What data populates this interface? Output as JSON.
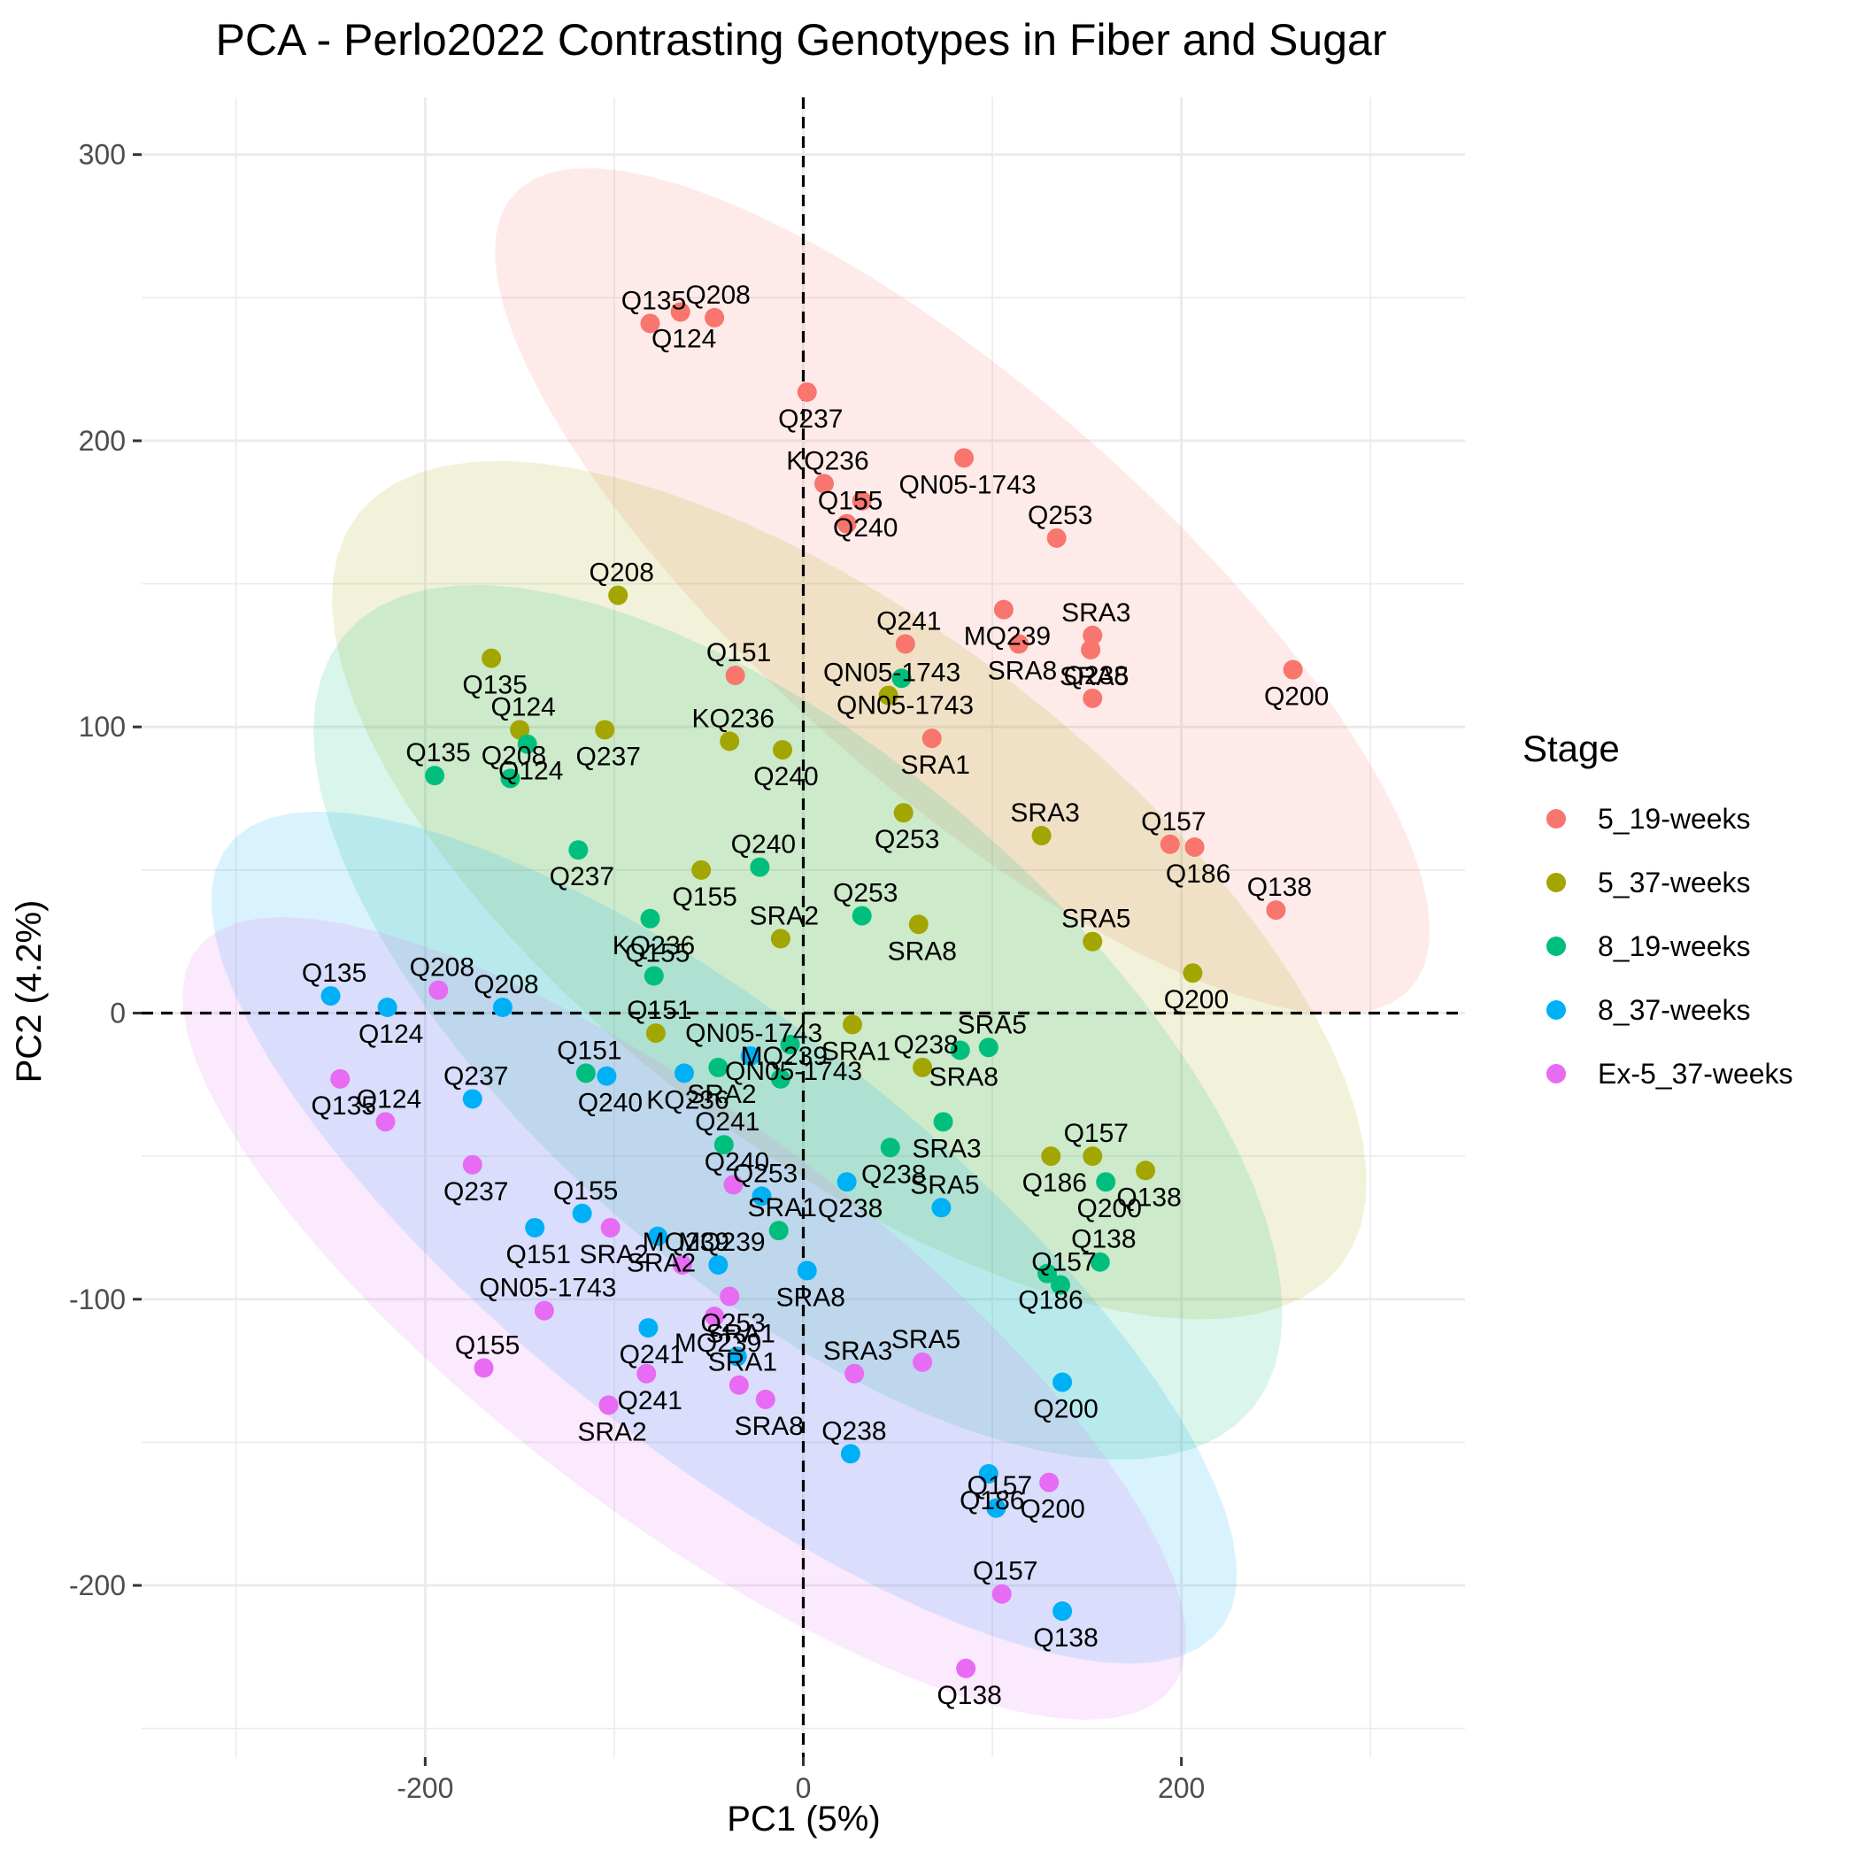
{
  "chart_data": {
    "type": "scatter",
    "title": "PCA - Perlo2022 Contrasting Genotypes in Fiber and Sugar",
    "xlabel": "PC1 (5%)",
    "ylabel": "PC2 (4.2%)",
    "xlim": [
      -350,
      350
    ],
    "ylim": [
      -260,
      320
    ],
    "x_ticks": [
      -200,
      0,
      200
    ],
    "y_ticks": [
      300,
      200,
      100,
      0,
      -100,
      -200
    ],
    "x_tick_labels": [
      "-200",
      "0",
      "200"
    ],
    "y_tick_labels": [
      "300",
      "200",
      "100",
      "0",
      "-100",
      "-200"
    ],
    "grid": true,
    "reference_lines": {
      "x": 0,
      "y": 0,
      "style": "dashed"
    },
    "ellipses": true,
    "legend_title": "Stage",
    "legend_position": "right",
    "series": [
      {
        "name": "5_19-weeks",
        "color": "#F8766D",
        "points": [
          {
            "x": -81,
            "y": 241,
            "label": "Q135"
          },
          {
            "x": -65,
            "y": 245,
            "label": "Q124"
          },
          {
            "x": -47,
            "y": 243,
            "label": "Q208"
          },
          {
            "x": 2,
            "y": 217,
            "label": "Q237"
          },
          {
            "x": 11,
            "y": 185,
            "label": "KQ236"
          },
          {
            "x": 31,
            "y": 179,
            "label": "Q240"
          },
          {
            "x": 23,
            "y": 171,
            "label": "Q155"
          },
          {
            "x": 85,
            "y": 194,
            "label": "QN05-1743"
          },
          {
            "x": 134,
            "y": 166,
            "label": "Q253"
          },
          {
            "x": 106,
            "y": 141,
            "label": "MQ239"
          },
          {
            "x": 54,
            "y": 129,
            "label": "Q241"
          },
          {
            "x": 114,
            "y": 129,
            "label": "SRA8"
          },
          {
            "x": 153,
            "y": 132,
            "label": "SRA3"
          },
          {
            "x": 152,
            "y": 127,
            "label": "SRA5"
          },
          {
            "x": 153,
            "y": 110,
            "label": "Q238"
          },
          {
            "x": 259,
            "y": 120,
            "label": "Q200"
          },
          {
            "x": -36,
            "y": 118,
            "label": "Q151"
          },
          {
            "x": 68,
            "y": 96,
            "label": "SRA1"
          },
          {
            "x": 194,
            "y": 59,
            "label": "Q157"
          },
          {
            "x": 207,
            "y": 58,
            "label": "Q186"
          },
          {
            "x": 250,
            "y": 36,
            "label": "Q138"
          }
        ]
      },
      {
        "name": "5_37-weeks",
        "color": "#A3A500",
        "points": [
          {
            "x": -98,
            "y": 146,
            "label": "Q208"
          },
          {
            "x": -165,
            "y": 124,
            "label": "Q135"
          },
          {
            "x": -150,
            "y": 99,
            "label": "Q124"
          },
          {
            "x": -105,
            "y": 99,
            "label": "Q237"
          },
          {
            "x": -39,
            "y": 95,
            "label": "KQ236"
          },
          {
            "x": -11,
            "y": 92,
            "label": "Q240"
          },
          {
            "x": 45,
            "y": 111,
            "label": "QN05-1743"
          },
          {
            "x": 53,
            "y": 70,
            "label": "Q253"
          },
          {
            "x": 126,
            "y": 62,
            "label": "SRA3"
          },
          {
            "x": -54,
            "y": 50,
            "label": "Q155"
          },
          {
            "x": -12,
            "y": 26,
            "label": "SRA2"
          },
          {
            "x": 61,
            "y": 31,
            "label": "SRA8"
          },
          {
            "x": 153,
            "y": 25,
            "label": "SRA5"
          },
          {
            "x": 206,
            "y": 14,
            "label": "Q200"
          },
          {
            "x": -78,
            "y": -7,
            "label": "Q151"
          },
          {
            "x": 26,
            "y": -4,
            "label": "SRA1"
          },
          {
            "x": 63,
            "y": -19,
            "label": "Q238"
          },
          {
            "x": 131,
            "y": -50,
            "label": "Q186"
          },
          {
            "x": 153,
            "y": -50,
            "label": "Q157"
          },
          {
            "x": 181,
            "y": -55,
            "label": "Q138"
          }
        ]
      },
      {
        "name": "8_19-weeks",
        "color": "#00BF7D",
        "points": [
          {
            "x": -195,
            "y": 83,
            "label": "Q135"
          },
          {
            "x": -146,
            "y": 94,
            "label": "Q124"
          },
          {
            "x": -155,
            "y": 82,
            "label": "Q208"
          },
          {
            "x": -119,
            "y": 57,
            "label": "Q237"
          },
          {
            "x": -23,
            "y": 51,
            "label": "Q240"
          },
          {
            "x": -81,
            "y": 33,
            "label": "KQ236"
          },
          {
            "x": -79,
            "y": 13,
            "label": "Q155"
          },
          {
            "x": 52,
            "y": 117,
            "label": "QN05-1743"
          },
          {
            "x": 31,
            "y": 34,
            "label": "Q253"
          },
          {
            "x": -7,
            "y": -11,
            "label": "QN05-1743"
          },
          {
            "x": -115,
            "y": -21,
            "label": "Q151"
          },
          {
            "x": -45,
            "y": -19,
            "label": "SRA2"
          },
          {
            "x": -12,
            "y": -23,
            "label": "MQ239"
          },
          {
            "x": 83,
            "y": -13,
            "label": "SRA8"
          },
          {
            "x": 98,
            "y": -12,
            "label": "SRA5"
          },
          {
            "x": 74,
            "y": -38,
            "label": "SRA3"
          },
          {
            "x": -42,
            "y": -46,
            "label": "Q241"
          },
          {
            "x": 46,
            "y": -47,
            "label": "Q238"
          },
          {
            "x": -13,
            "y": -76,
            "label": "SRA1"
          },
          {
            "x": 160,
            "y": -59,
            "label": "Q200"
          },
          {
            "x": 157,
            "y": -87,
            "label": "Q138"
          },
          {
            "x": 129,
            "y": -91,
            "label": "Q186"
          },
          {
            "x": 136,
            "y": -95,
            "label": "Q157"
          }
        ]
      },
      {
        "name": "8_37-weeks",
        "color": "#00B0F6",
        "points": [
          {
            "x": -250,
            "y": 6,
            "label": "Q135"
          },
          {
            "x": -220,
            "y": 2,
            "label": "Q124"
          },
          {
            "x": -159,
            "y": 2,
            "label": "Q208"
          },
          {
            "x": -104,
            "y": -22,
            "label": "Q240"
          },
          {
            "x": -175,
            "y": -30,
            "label": "Q237"
          },
          {
            "x": -63,
            "y": -21,
            "label": "KQ236"
          },
          {
            "x": -28,
            "y": -15,
            "label": "QN05-1743"
          },
          {
            "x": 23,
            "y": -59,
            "label": "Q238"
          },
          {
            "x": -22,
            "y": -64,
            "label": "Q253"
          },
          {
            "x": -142,
            "y": -75,
            "label": "Q151"
          },
          {
            "x": -117,
            "y": -70,
            "label": "Q155"
          },
          {
            "x": -77,
            "y": -78,
            "label": "SRA2"
          },
          {
            "x": -45,
            "y": -88,
            "label": "MQ239"
          },
          {
            "x": 2,
            "y": -90,
            "label": "SRA8"
          },
          {
            "x": 73,
            "y": -68,
            "label": "SRA5"
          },
          {
            "x": -82,
            "y": -110,
            "label": "Q241"
          },
          {
            "x": -35,
            "y": -120,
            "label": "SRA1"
          },
          {
            "x": 137,
            "y": -129,
            "label": "Q200"
          },
          {
            "x": 25,
            "y": -154,
            "label": "Q238"
          },
          {
            "x": 98,
            "y": -161,
            "label": "Q186"
          },
          {
            "x": 102,
            "y": -173,
            "label": "Q157"
          },
          {
            "x": 137,
            "y": -209,
            "label": "Q138"
          }
        ]
      },
      {
        "name": "Ex-5_37-weeks",
        "color": "#E76BF3",
        "points": [
          {
            "x": -193,
            "y": 8,
            "label": "Q208"
          },
          {
            "x": -245,
            "y": -23,
            "label": "Q135"
          },
          {
            "x": -221,
            "y": -38,
            "label": "Q124"
          },
          {
            "x": -175,
            "y": -53,
            "label": "Q237"
          },
          {
            "x": -37,
            "y": -60,
            "label": "Q240"
          },
          {
            "x": -102,
            "y": -75,
            "label": "SRA2"
          },
          {
            "x": -64,
            "y": -88,
            "label": "MQ239"
          },
          {
            "x": -39,
            "y": -99,
            "label": "Q253"
          },
          {
            "x": -137,
            "y": -104,
            "label": "QN05-1743"
          },
          {
            "x": -47,
            "y": -106,
            "label": "MQ239"
          },
          {
            "x": -169,
            "y": -124,
            "label": "Q155"
          },
          {
            "x": -83,
            "y": -126,
            "label": "Q241"
          },
          {
            "x": -34,
            "y": -130,
            "label": "SRA1"
          },
          {
            "x": -20,
            "y": -135,
            "label": "SRA8"
          },
          {
            "x": 27,
            "y": -126,
            "label": "SRA3"
          },
          {
            "x": -103,
            "y": -137,
            "label": "SRA2"
          },
          {
            "x": 63,
            "y": -122,
            "label": "SRA5"
          },
          {
            "x": 130,
            "y": -164,
            "label": "Q200"
          },
          {
            "x": 105,
            "y": -203,
            "label": "Q157"
          },
          {
            "x": 86,
            "y": -229,
            "label": "Q138"
          }
        ]
      }
    ]
  }
}
